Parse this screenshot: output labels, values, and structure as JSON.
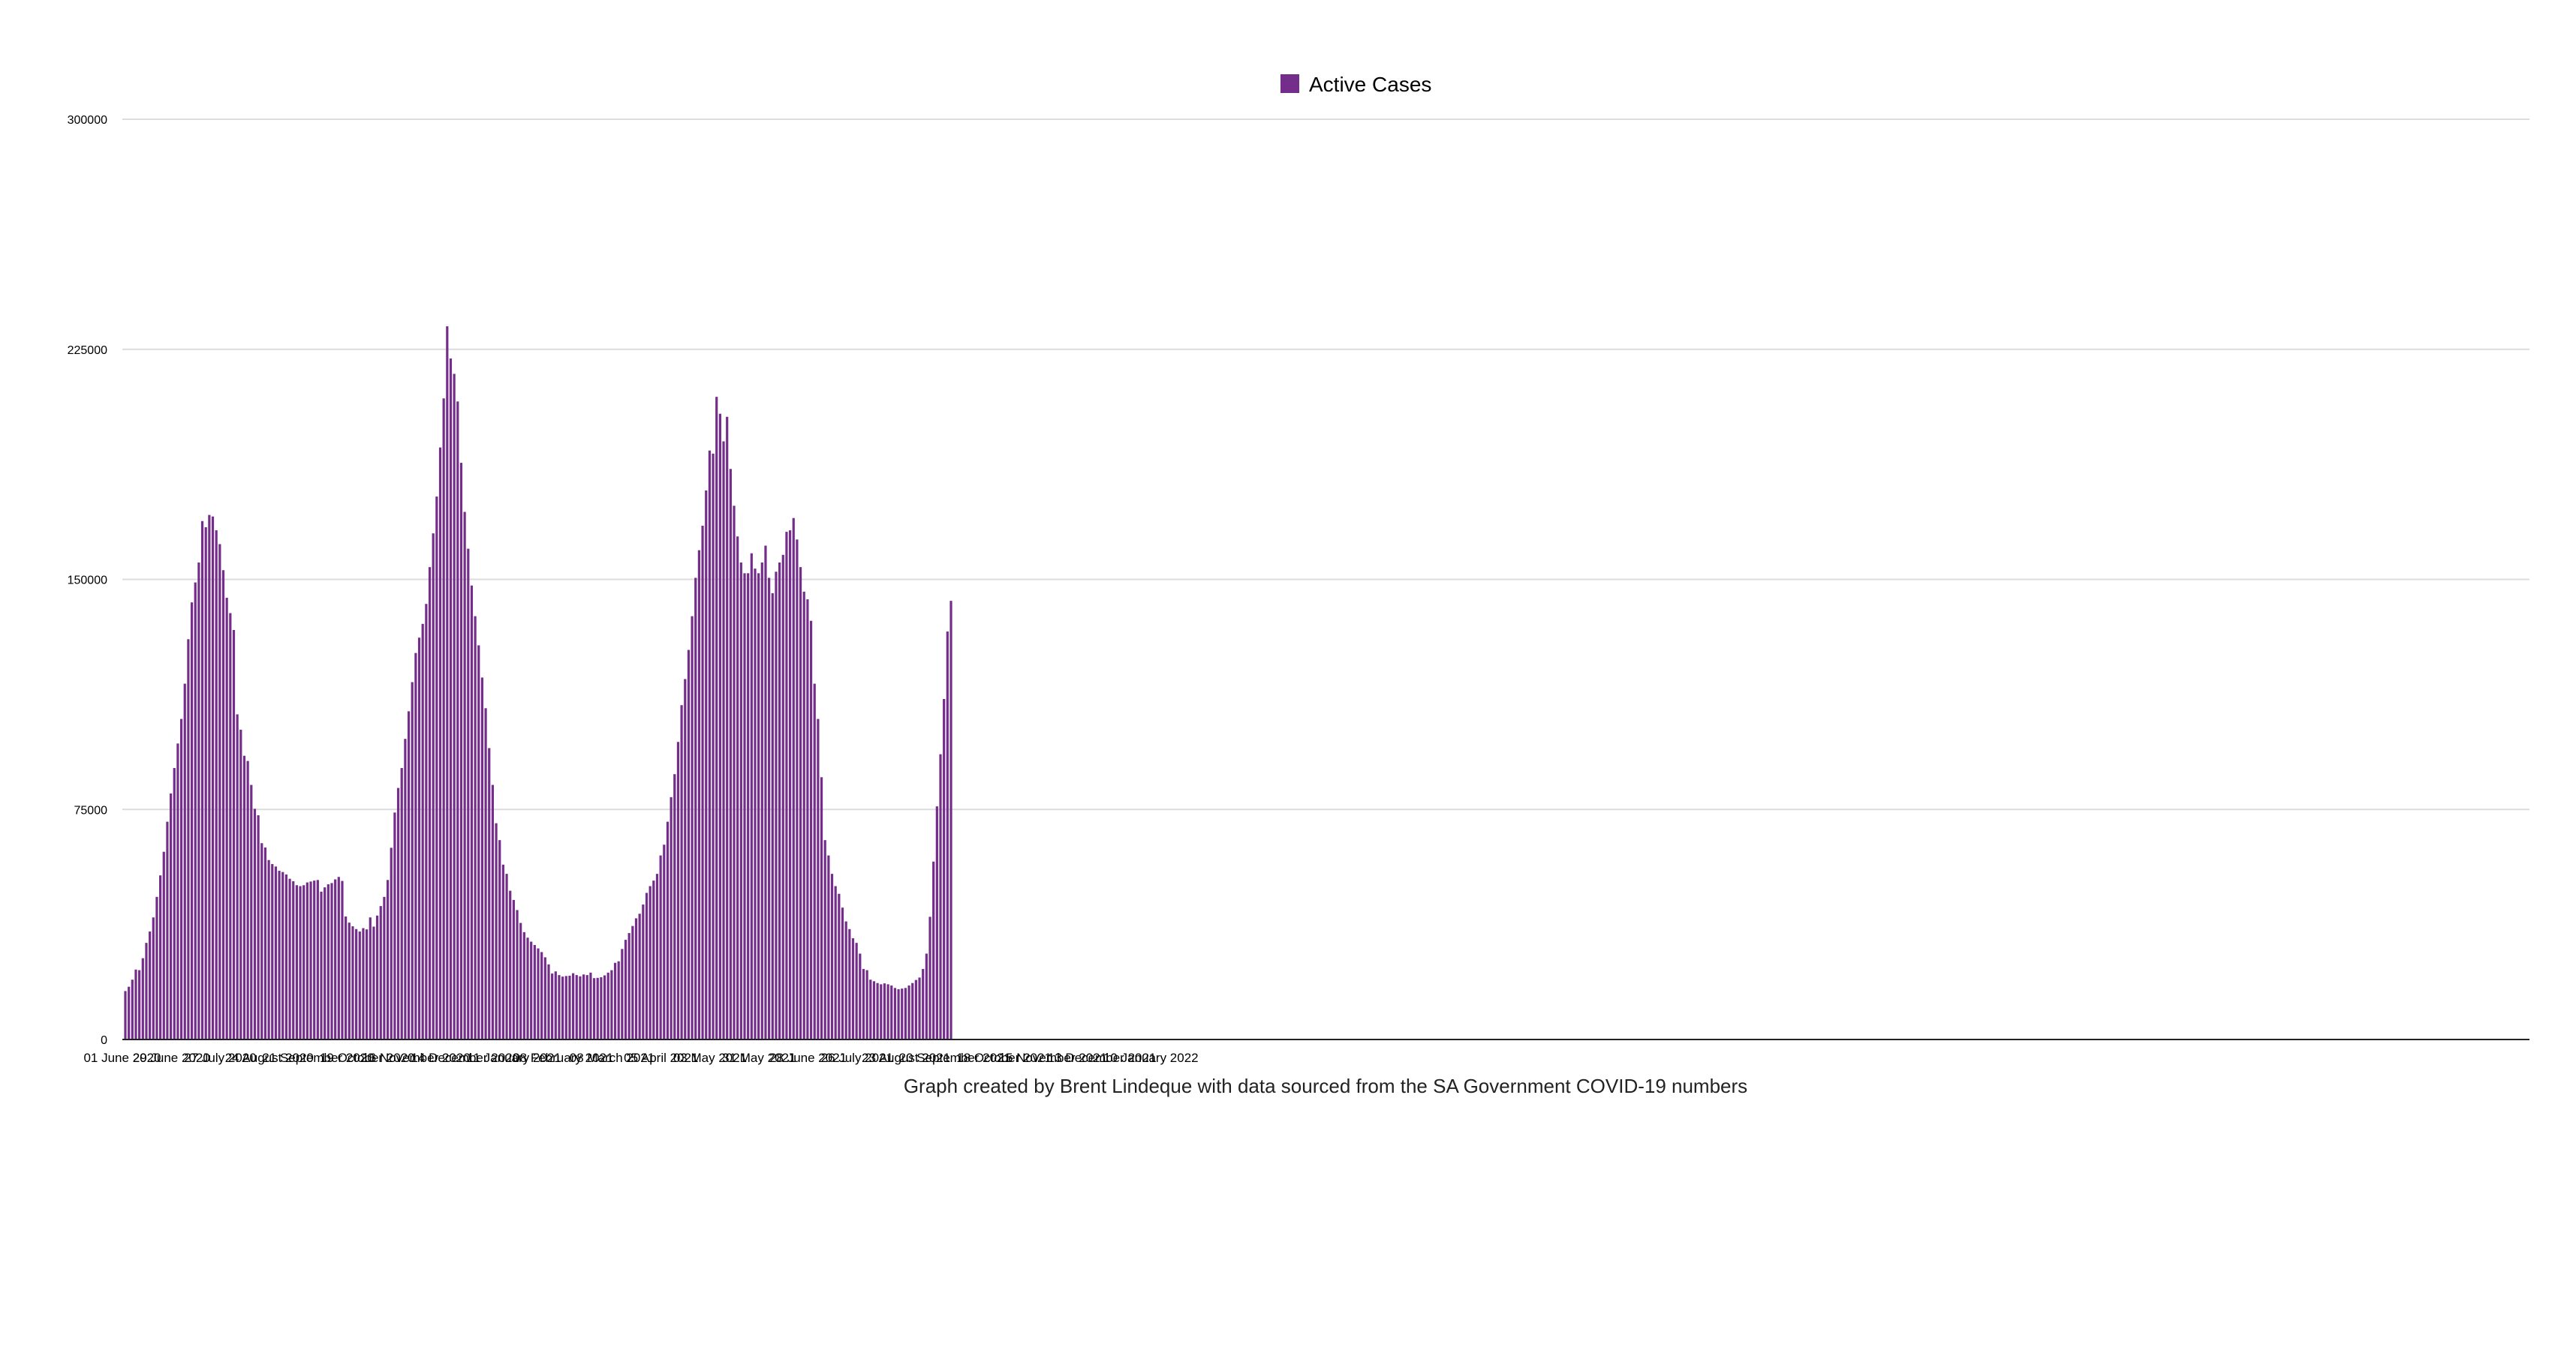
{
  "colors": {
    "bar": "#742d8b",
    "grid": "#dcdcdc",
    "axis": "#222222",
    "background": "#ffffff"
  },
  "caption": "Graph created by Brent Lindeque with data sourced from the SA Government COVID-19 numbers",
  "chart_data": {
    "type": "bar",
    "title": "",
    "xlabel": "",
    "ylabel": "",
    "ylim": [
      0,
      300000
    ],
    "yticks": [
      "0",
      "75000",
      "150000",
      "225000",
      "300000"
    ],
    "grid": true,
    "legend": {
      "placement": "top-center",
      "entries": [
        "Active Cases"
      ]
    },
    "x_tick_labels": [
      "01 June 2020",
      "29 June 2020",
      "27 July 2020",
      "24 August 2020",
      "21 September 2020",
      "19 October 2020",
      "16 November 2020",
      "14 December 2020",
      "11 January 2021",
      "08 February 2021",
      "08 March 2021",
      "05 April 2021",
      "03 May 2021",
      "31 May 2021",
      "28 June 2021",
      "26 July 2021",
      "23 August 2021",
      "20 September 2021",
      "18 October 2021",
      "15 November 2021",
      "13 December 2021",
      "10 January 2022"
    ],
    "days_per_tick": 28,
    "total_days": 630,
    "series": [
      {
        "name": "Active Cases",
        "start_date": "01 June 2020",
        "interval_days": 2,
        "values": [
          15800,
          17200,
          19500,
          22800,
          22600,
          26500,
          31500,
          35200,
          39800,
          46500,
          53500,
          61200,
          71000,
          80200,
          88500,
          96500,
          104500,
          116000,
          130500,
          142500,
          149000,
          155500,
          169000,
          167000,
          171000,
          170500,
          166000,
          161500,
          153000,
          144000,
          139000,
          133500,
          106000,
          101000,
          92500,
          90800,
          83000,
          75200,
          73100,
          64000,
          62600,
          58500,
          57200,
          56400,
          55000,
          54600,
          53800,
          52400,
          51600,
          50300,
          50000,
          50300,
          51200,
          51500,
          51800,
          52000,
          48200,
          49600,
          50600,
          51000,
          52200,
          53000,
          51700,
          40100,
          38100,
          36900,
          36000,
          35200,
          36300,
          35900,
          39800,
          36800,
          40400,
          43500,
          46500,
          52000,
          62500,
          74000,
          82000,
          88500,
          98000,
          107000,
          116500,
          126000,
          131000,
          135500,
          142000,
          154000,
          165000,
          177000,
          193000,
          209000,
          232500,
          222000,
          217000,
          208000,
          188000,
          172000,
          160000,
          148000,
          138000,
          128500,
          118000,
          108000,
          95000,
          83000,
          70500,
          65000,
          57000,
          54000,
          48500,
          45500,
          42200,
          38000,
          35000,
          33200,
          31900,
          30800,
          29700,
          28500,
          26800,
          24500,
          21500,
          22200,
          21000,
          20500,
          20700,
          20800,
          21600,
          21000,
          20600,
          21200,
          21000,
          21800,
          20000,
          20100,
          20300,
          20900,
          21800,
          22600,
          25000,
          25500,
          29500,
          32500,
          34700,
          37000,
          39500,
          41000,
          44000,
          47800,
          50000,
          51800,
          54000,
          60000,
          63500,
          71000,
          79000,
          86500,
          97000,
          109000,
          117500,
          127000,
          138000,
          150500,
          159500,
          167500,
          179000,
          192000,
          191000,
          209500,
          204000,
          195000,
          203000,
          186000,
          174000,
          164000,
          155500,
          152000,
          152000,
          158500,
          153500,
          152000,
          155500,
          161000,
          150500,
          145500,
          152500,
          155500,
          158000,
          165500,
          166000,
          170000,
          163000,
          154000,
          146000,
          143500,
          136500,
          116000,
          104500,
          85500,
          65000,
          60000,
          54000,
          50000,
          47500,
          43000,
          38500,
          36000,
          33000,
          31500,
          28000,
          23000,
          22600,
          19500,
          19000,
          18400,
          18000,
          18300,
          18000,
          17600,
          16800,
          16400,
          16600,
          16800,
          17600,
          18400,
          19400,
          20200,
          23000,
          28000,
          40000,
          58000,
          76000,
          93000,
          111000,
          133000,
          143000
        ]
      }
    ]
  }
}
